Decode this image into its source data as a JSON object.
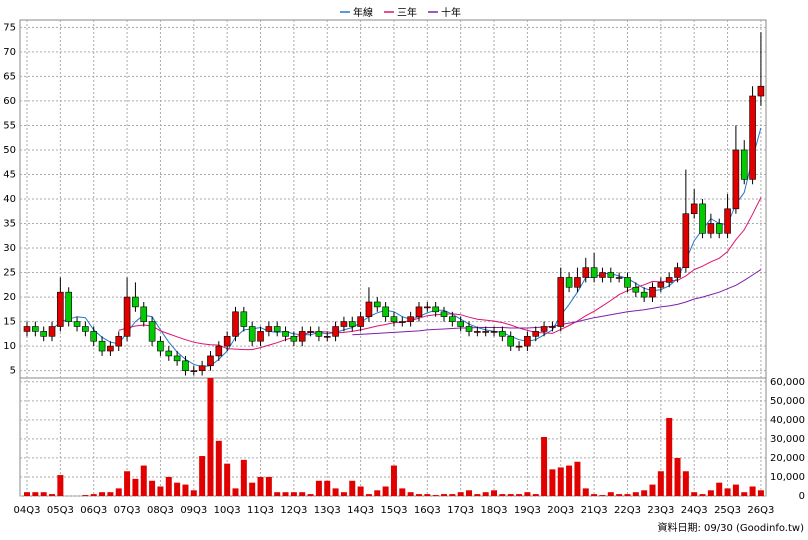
{
  "chart_data": [
    {
      "type": "candlestick",
      "categories": [
        "04Q3",
        null,
        null,
        null,
        "05Q3",
        null,
        null,
        null,
        "06Q3",
        null,
        null,
        null,
        "07Q3",
        null,
        null,
        null,
        "08Q3",
        null,
        null,
        null,
        "09Q3",
        null,
        null,
        null,
        "10Q3",
        null,
        null,
        null,
        "11Q3",
        null,
        null,
        null,
        "12Q3",
        null,
        null,
        null,
        "13Q3",
        null,
        null,
        null,
        "14Q3",
        null,
        null,
        null,
        "15Q3",
        null,
        null,
        null,
        "16Q3",
        null,
        null,
        null,
        "17Q3",
        null,
        null,
        null,
        "18Q3",
        null,
        null,
        null,
        "19Q3",
        null,
        null,
        null,
        "20Q3",
        null,
        null,
        null,
        "21Q3",
        null,
        null,
        null,
        "22Q3",
        null,
        null,
        null,
        "23Q3",
        null,
        null,
        null,
        "24Q3",
        null,
        null,
        null,
        "25Q3",
        null,
        null,
        null,
        "26Q3"
      ],
      "open": [
        13,
        14,
        13,
        12,
        14,
        21,
        15,
        14,
        13,
        11,
        9,
        10,
        12,
        20,
        18,
        15,
        11,
        9,
        8,
        7,
        5,
        5,
        6,
        8,
        10,
        12,
        17,
        14,
        11,
        13,
        14,
        13,
        12,
        11,
        13,
        13,
        12,
        12,
        14,
        15,
        14,
        16,
        19,
        18,
        16,
        15,
        15,
        16,
        18,
        18,
        17,
        16,
        15,
        14,
        13,
        13,
        13,
        13,
        12,
        10,
        10,
        12,
        13,
        14,
        14,
        24,
        22,
        24,
        26,
        24,
        25,
        24,
        24,
        22,
        21,
        20,
        22,
        23,
        24,
        26,
        37,
        39,
        33,
        35,
        33,
        38,
        50,
        44,
        61
      ],
      "high": [
        15,
        15,
        14,
        15,
        24,
        22,
        16,
        15,
        14,
        12,
        11,
        13,
        24,
        23,
        19,
        16,
        12,
        10,
        9,
        8,
        6,
        7,
        9,
        11,
        13,
        18,
        18,
        15,
        14,
        15,
        15,
        14,
        13,
        14,
        14,
        14,
        13,
        15,
        16,
        16,
        17,
        22,
        20,
        19,
        17,
        16,
        17,
        19,
        19,
        19,
        18,
        17,
        16,
        15,
        14,
        14,
        14,
        14,
        13,
        11,
        13,
        14,
        15,
        15,
        26,
        25,
        26,
        28,
        29,
        26,
        26,
        25,
        25,
        23,
        22,
        23,
        24,
        25,
        27,
        46,
        42,
        40,
        37,
        36,
        41,
        55,
        52,
        63,
        74
      ],
      "low": [
        12,
        12,
        11,
        11,
        13,
        14,
        13,
        12,
        10,
        8,
        8,
        9,
        11,
        17,
        14,
        10,
        8,
        7,
        6,
        4,
        4,
        4,
        5,
        7,
        9,
        11,
        13,
        10,
        10,
        12,
        12,
        11,
        10,
        10,
        12,
        11,
        11,
        11,
        13,
        13,
        13,
        15,
        17,
        15,
        14,
        14,
        14,
        15,
        17,
        16,
        15,
        14,
        13,
        12,
        12,
        12,
        12,
        11,
        9,
        9,
        9,
        11,
        12,
        13,
        13,
        21,
        21,
        23,
        23,
        23,
        23,
        23,
        21,
        20,
        19,
        19,
        21,
        22,
        23,
        25,
        36,
        32,
        32,
        32,
        32,
        37,
        43,
        43,
        59
      ],
      "close": [
        14,
        13,
        12,
        14,
        21,
        15,
        14,
        13,
        11,
        9,
        10,
        12,
        20,
        18,
        15,
        11,
        9,
        8,
        7,
        5,
        5,
        6,
        8,
        10,
        12,
        17,
        14,
        11,
        13,
        14,
        13,
        12,
        11,
        13,
        13,
        12,
        12,
        14,
        15,
        14,
        16,
        19,
        18,
        16,
        15,
        15,
        16,
        18,
        18,
        17,
        16,
        15,
        14,
        13,
        13,
        13,
        13,
        12,
        10,
        10,
        12,
        13,
        14,
        14,
        24,
        22,
        24,
        26,
        24,
        25,
        24,
        24,
        22,
        21,
        20,
        22,
        23,
        24,
        26,
        37,
        39,
        33,
        35,
        33,
        38,
        50,
        44,
        61,
        63
      ],
      "up_color": "#e00000",
      "down_color": "#00cc00",
      "series": [
        {
          "name": "年線",
          "color": "#1f78c8",
          "values": [
            null,
            null,
            null,
            13.3,
            15,
            15.5,
            16,
            15.8,
            13.3,
            11.8,
            10.8,
            10.5,
            12.8,
            15,
            16.3,
            16,
            13.3,
            10.8,
            8.8,
            7.3,
            6.3,
            5.8,
            6,
            7.3,
            9,
            11.8,
            13.3,
            13.5,
            13.8,
            13,
            12.8,
            13,
            12.5,
            12.3,
            12.3,
            12.8,
            12.5,
            12.8,
            13.3,
            13.8,
            14.8,
            16,
            16.8,
            17.3,
            17,
            16,
            15.5,
            16,
            16.8,
            17.3,
            17.3,
            16.5,
            15.5,
            14.5,
            13.8,
            13.3,
            13,
            12.8,
            12,
            11.3,
            11,
            11.3,
            12.3,
            13.3,
            16.3,
            18.5,
            21,
            24,
            24,
            24.8,
            24.8,
            24.3,
            23.8,
            22.8,
            21.8,
            21.3,
            21.5,
            22.3,
            23.8,
            27.5,
            31.5,
            33.8,
            36,
            35,
            34.8,
            39,
            41.3,
            48.3,
            54.5
          ]
        },
        {
          "name": "三年",
          "color": "#e0106e",
          "values": [
            null,
            null,
            null,
            null,
            null,
            null,
            null,
            null,
            null,
            null,
            null,
            13.2,
            13.7,
            14.1,
            14.3,
            14.1,
            13.1,
            12.5,
            11.9,
            11.3,
            10.8,
            10.5,
            10.3,
            10.2,
            9.5,
            9.4,
            9.3,
            9.3,
            9.7,
            10.2,
            10.7,
            11.3,
            11.8,
            12.3,
            12.8,
            12.9,
            12.9,
            12.7,
            12.8,
            13,
            13.3,
            13.7,
            14.1,
            14.4,
            14.8,
            14.9,
            15.2,
            15.7,
            16.2,
            16.4,
            16.5,
            16.6,
            16.4,
            15.9,
            15.5,
            15.3,
            15.1,
            14.8,
            14.3,
            13.7,
            13.2,
            12.8,
            12.7,
            12.6,
            13.4,
            14.2,
            15.1,
            16.2,
            17.1,
            18.2,
            19.3,
            20.5,
            21.3,
            22,
            22.5,
            23.2,
            23.1,
            23.3,
            23.4,
            24.3,
            25.6,
            26.3,
            27.2,
            27.9,
            29.3,
            31.7,
            33.7,
            36.9,
            40.3
          ]
        },
        {
          "name": "十年",
          "color": "#8020a8",
          "values": [
            null,
            null,
            null,
            null,
            null,
            null,
            null,
            null,
            null,
            null,
            null,
            null,
            null,
            null,
            null,
            null,
            null,
            null,
            null,
            null,
            null,
            null,
            null,
            null,
            null,
            null,
            null,
            null,
            null,
            null,
            null,
            null,
            null,
            null,
            null,
            null,
            null,
            null,
            null,
            12.3,
            12.4,
            12.5,
            12.6,
            12.7,
            12.8,
            12.9,
            13,
            13.1,
            13.3,
            13.4,
            13.5,
            13.6,
            13.7,
            13.7,
            13.8,
            13.8,
            13.8,
            13.8,
            13.7,
            13.7,
            13.7,
            13.8,
            13.9,
            14,
            14.4,
            14.7,
            15,
            15.4,
            15.8,
            16.1,
            16.4,
            16.7,
            17,
            17.2,
            17.4,
            17.7,
            18,
            18.2,
            18.5,
            19,
            19.6,
            20,
            20.5,
            21,
            21.7,
            22.4,
            23.4,
            24.5,
            25.6
          ]
        }
      ],
      "ylim": [
        3.5,
        76.5
      ],
      "yticks": [
        5,
        10,
        15,
        20,
        25,
        30,
        35,
        40,
        45,
        50,
        55,
        60,
        65,
        70,
        75
      ],
      "grid": true
    },
    {
      "type": "bar",
      "color": "#e00000",
      "values": [
        2000,
        2000,
        2000,
        1000,
        11000,
        0,
        0,
        500,
        1000,
        2000,
        2000,
        4000,
        13000,
        9000,
        16000,
        8000,
        5000,
        10000,
        7000,
        6000,
        3000,
        21000,
        62000,
        29000,
        17000,
        4000,
        19000,
        7000,
        10000,
        10000,
        2000,
        2000,
        2000,
        2000,
        1000,
        8000,
        8000,
        4000,
        2000,
        8000,
        5000,
        1000,
        3000,
        5000,
        16000,
        4000,
        2000,
        1000,
        1000,
        500,
        1000,
        1000,
        2000,
        3000,
        1000,
        2000,
        3000,
        1000,
        1000,
        1000,
        2000,
        1000,
        31000,
        14000,
        15000,
        16000,
        18000,
        4000,
        1000,
        500,
        2000,
        1000,
        1000,
        2000,
        3000,
        6000,
        13000,
        41000,
        20000,
        13000,
        2000,
        1000,
        3000,
        7000,
        4000,
        6000,
        2000,
        5000,
        3000
      ],
      "ylim": [
        0,
        62000
      ],
      "yticks": [
        0,
        {
          "value": 10000,
          "label": "10,000"
        },
        {
          "value": 20000,
          "label": "20,000"
        },
        {
          "value": 30000,
          "label": "30,000"
        },
        {
          "value": 40000,
          "label": "40,000"
        },
        {
          "value": 50000,
          "label": "50,000"
        },
        {
          "value": 60000,
          "label": "60,000"
        }
      ],
      "grid": true,
      "footnote": "資料日期: 09/30 (Goodinfo.tw)"
    }
  ]
}
